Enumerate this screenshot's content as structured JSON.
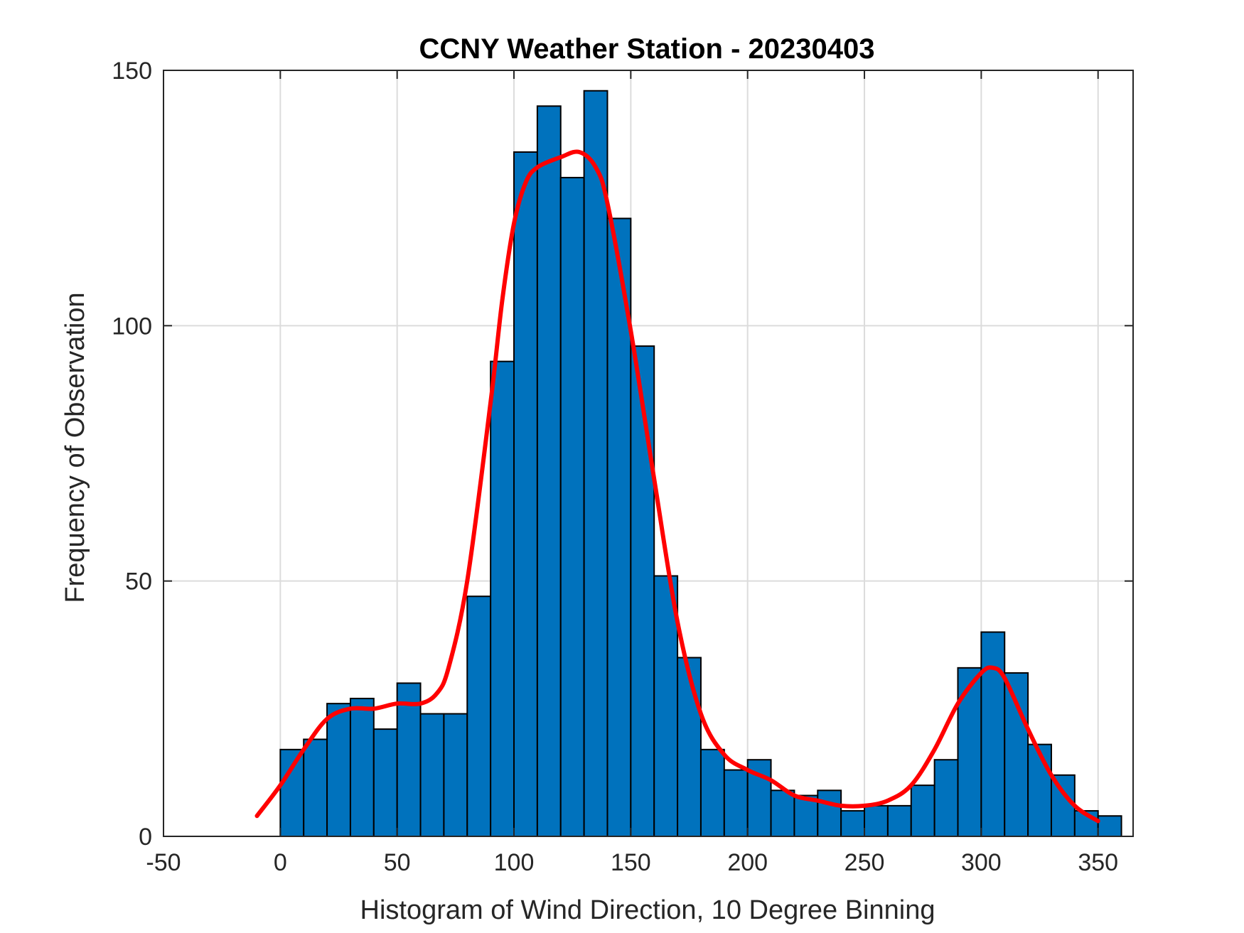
{
  "chart_data": {
    "type": "bar",
    "title": "CCNY Weather Station - 20230403",
    "xlabel": "Histogram of Wind Direction, 10 Degree Binning",
    "ylabel": "Frequency of Observation",
    "xlim": [
      -50,
      365
    ],
    "ylim": [
      0,
      150
    ],
    "xticks": [
      -50,
      0,
      50,
      100,
      150,
      200,
      250,
      300,
      350
    ],
    "yticks": [
      0,
      50,
      100,
      150
    ],
    "grid": true,
    "bin_width": 10,
    "bin_starts": [
      0,
      10,
      20,
      30,
      40,
      50,
      60,
      70,
      80,
      90,
      100,
      110,
      120,
      130,
      140,
      150,
      160,
      170,
      180,
      190,
      200,
      210,
      220,
      230,
      240,
      250,
      260,
      270,
      280,
      290,
      300,
      310,
      320,
      330,
      340,
      350
    ],
    "values": [
      17,
      19,
      26,
      27,
      21,
      30,
      24,
      24,
      47,
      93,
      134,
      143,
      129,
      146,
      121,
      96,
      51,
      35,
      17,
      13,
      15,
      9,
      8,
      9,
      5,
      6,
      6,
      10,
      15,
      33,
      40,
      32,
      18,
      12,
      5,
      4
    ],
    "bar_color": "#0072BD",
    "curve": {
      "color": "#FF0000",
      "x": [
        -10,
        0,
        10,
        20,
        30,
        40,
        50,
        60,
        67,
        72,
        80,
        90,
        95,
        100,
        105,
        110,
        120,
        128,
        135,
        140,
        150,
        160,
        170,
        180,
        190,
        200,
        210,
        220,
        230,
        240,
        250,
        260,
        270,
        280,
        290,
        300,
        305,
        310,
        320,
        330,
        340,
        350
      ],
      "y": [
        4,
        10,
        17,
        23,
        25,
        25,
        26,
        26,
        28,
        33,
        50,
        85,
        105,
        120,
        128,
        131,
        133,
        134,
        131,
        124,
        99,
        70,
        42,
        24,
        16,
        13,
        11,
        8,
        7,
        6,
        6,
        7,
        10,
        17,
        26,
        32,
        33,
        31,
        21,
        12,
        6,
        3
      ]
    }
  }
}
